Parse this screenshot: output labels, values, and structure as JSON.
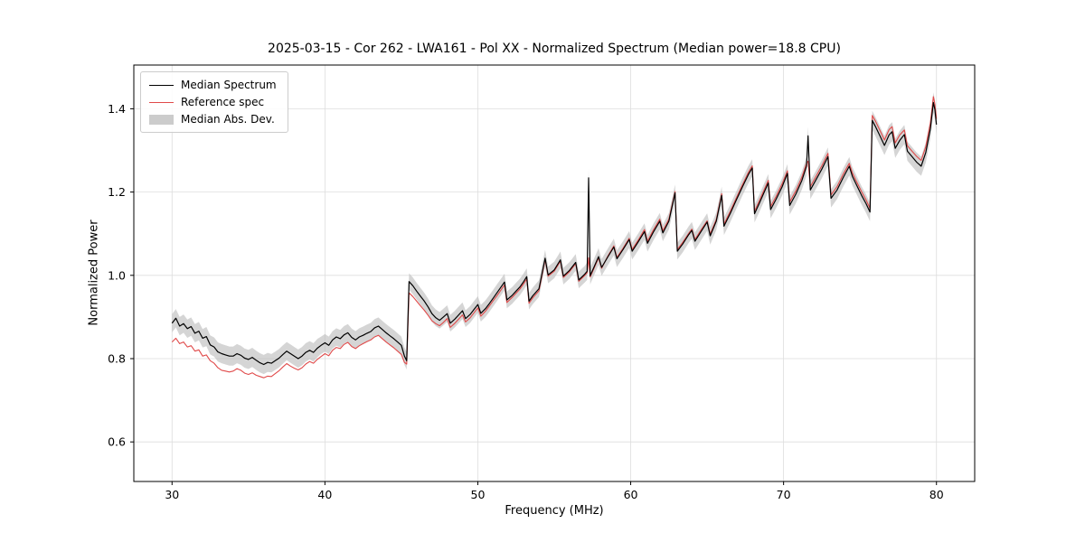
{
  "chart_data": {
    "type": "line",
    "title": "2025-03-15 - Cor 262 - LWA161 - Pol XX - Normalized Spectrum (Median power=18.8 CPU)",
    "xlabel": "Frequency (MHz)",
    "ylabel": "Normalized Power",
    "xlim": [
      27.5,
      82.5
    ],
    "ylim": [
      0.505,
      1.505
    ],
    "xticks": [
      30,
      40,
      50,
      60,
      70,
      80
    ],
    "yticks": [
      0.6,
      0.8,
      1.0,
      1.2,
      1.4
    ],
    "grid": true,
    "legend_position": "upper-left",
    "legend": [
      "Median Spectrum",
      "Reference spec",
      "Median Abs. Dev."
    ],
    "colors": {
      "median": "#000000",
      "reference": "#e04a4a",
      "band": "#bfbfbf",
      "grid": "#dddddd",
      "frame": "#000000"
    },
    "point_format": [
      "frequency_mhz",
      "median",
      "reference",
      "mad_halfwidth"
    ],
    "points": [
      [
        30.0,
        0.885,
        0.84,
        0.022
      ],
      [
        30.25,
        0.897,
        0.849,
        0.022
      ],
      [
        30.5,
        0.878,
        0.836,
        0.022
      ],
      [
        30.75,
        0.884,
        0.84,
        0.022
      ],
      [
        31.0,
        0.872,
        0.828,
        0.022
      ],
      [
        31.25,
        0.877,
        0.831,
        0.022
      ],
      [
        31.5,
        0.861,
        0.818,
        0.022
      ],
      [
        31.75,
        0.866,
        0.821,
        0.022
      ],
      [
        32.0,
        0.849,
        0.806,
        0.022
      ],
      [
        32.25,
        0.853,
        0.809,
        0.023
      ],
      [
        32.5,
        0.833,
        0.795,
        0.023
      ],
      [
        32.75,
        0.828,
        0.789,
        0.023
      ],
      [
        33.0,
        0.816,
        0.778,
        0.023
      ],
      [
        33.25,
        0.812,
        0.772,
        0.023
      ],
      [
        33.5,
        0.809,
        0.77,
        0.023
      ],
      [
        33.75,
        0.806,
        0.768,
        0.023
      ],
      [
        34.0,
        0.806,
        0.77,
        0.023
      ],
      [
        34.25,
        0.812,
        0.776,
        0.023
      ],
      [
        34.5,
        0.808,
        0.772,
        0.023
      ],
      [
        34.75,
        0.801,
        0.765,
        0.023
      ],
      [
        35.0,
        0.798,
        0.762,
        0.023
      ],
      [
        35.25,
        0.803,
        0.766,
        0.023
      ],
      [
        35.5,
        0.796,
        0.76,
        0.023
      ],
      [
        35.75,
        0.79,
        0.757,
        0.023
      ],
      [
        36.0,
        0.786,
        0.754,
        0.023
      ],
      [
        36.25,
        0.791,
        0.758,
        0.023
      ],
      [
        36.5,
        0.789,
        0.757,
        0.022
      ],
      [
        36.75,
        0.795,
        0.764,
        0.022
      ],
      [
        37.0,
        0.801,
        0.771,
        0.022
      ],
      [
        37.25,
        0.81,
        0.78,
        0.022
      ],
      [
        37.5,
        0.818,
        0.788,
        0.022
      ],
      [
        37.75,
        0.812,
        0.782,
        0.022
      ],
      [
        38.0,
        0.806,
        0.777,
        0.022
      ],
      [
        38.25,
        0.8,
        0.773,
        0.022
      ],
      [
        38.5,
        0.806,
        0.778,
        0.022
      ],
      [
        38.75,
        0.815,
        0.787,
        0.022
      ],
      [
        39.0,
        0.82,
        0.793,
        0.022
      ],
      [
        39.25,
        0.815,
        0.789,
        0.022
      ],
      [
        39.5,
        0.825,
        0.798,
        0.022
      ],
      [
        39.75,
        0.832,
        0.805,
        0.021
      ],
      [
        40.0,
        0.838,
        0.812,
        0.021
      ],
      [
        40.25,
        0.832,
        0.807,
        0.021
      ],
      [
        40.5,
        0.845,
        0.82,
        0.021
      ],
      [
        40.75,
        0.852,
        0.827,
        0.021
      ],
      [
        41.0,
        0.848,
        0.824,
        0.021
      ],
      [
        41.25,
        0.857,
        0.834,
        0.021
      ],
      [
        41.5,
        0.862,
        0.839,
        0.021
      ],
      [
        41.75,
        0.851,
        0.829,
        0.021
      ],
      [
        42.0,
        0.845,
        0.824,
        0.021
      ],
      [
        42.25,
        0.852,
        0.831,
        0.021
      ],
      [
        42.5,
        0.856,
        0.836,
        0.021
      ],
      [
        42.75,
        0.861,
        0.841,
        0.021
      ],
      [
        43.0,
        0.865,
        0.845,
        0.021
      ],
      [
        43.25,
        0.874,
        0.852,
        0.021
      ],
      [
        43.5,
        0.878,
        0.856,
        0.021
      ],
      [
        43.75,
        0.87,
        0.848,
        0.021
      ],
      [
        44.0,
        0.862,
        0.84,
        0.021
      ],
      [
        44.25,
        0.855,
        0.833,
        0.021
      ],
      [
        44.5,
        0.848,
        0.826,
        0.021
      ],
      [
        44.75,
        0.84,
        0.818,
        0.021
      ],
      [
        45.0,
        0.832,
        0.81,
        0.021
      ],
      [
        45.2,
        0.806,
        0.791,
        0.021
      ],
      [
        45.35,
        0.795,
        0.787,
        0.021
      ],
      [
        45.5,
        0.985,
        0.958,
        0.02
      ],
      [
        45.75,
        0.975,
        0.949,
        0.02
      ],
      [
        46.0,
        0.962,
        0.938,
        0.02
      ],
      [
        46.25,
        0.95,
        0.927,
        0.02
      ],
      [
        46.5,
        0.938,
        0.916,
        0.02
      ],
      [
        46.75,
        0.924,
        0.904,
        0.02
      ],
      [
        47.0,
        0.908,
        0.891,
        0.02
      ],
      [
        47.25,
        0.898,
        0.884,
        0.02
      ],
      [
        47.5,
        0.892,
        0.879,
        0.02
      ],
      [
        47.75,
        0.9,
        0.887,
        0.02
      ],
      [
        48.0,
        0.908,
        0.896,
        0.02
      ],
      [
        48.2,
        0.885,
        0.875,
        0.02
      ],
      [
        48.5,
        0.895,
        0.885,
        0.02
      ],
      [
        48.75,
        0.905,
        0.895,
        0.02
      ],
      [
        49.0,
        0.915,
        0.905,
        0.02
      ],
      [
        49.2,
        0.896,
        0.888,
        0.02
      ],
      [
        49.5,
        0.906,
        0.898,
        0.02
      ],
      [
        49.75,
        0.918,
        0.91,
        0.02
      ],
      [
        50.0,
        0.93,
        0.922,
        0.02
      ],
      [
        50.2,
        0.909,
        0.902,
        0.02
      ],
      [
        50.5,
        0.92,
        0.914,
        0.02
      ],
      [
        50.75,
        0.932,
        0.926,
        0.02
      ],
      [
        51.0,
        0.945,
        0.939,
        0.02
      ],
      [
        51.25,
        0.958,
        0.951,
        0.02
      ],
      [
        51.5,
        0.971,
        0.964,
        0.02
      ],
      [
        51.75,
        0.984,
        0.977,
        0.02
      ],
      [
        51.9,
        0.941,
        0.935,
        0.02
      ],
      [
        52.25,
        0.952,
        0.947,
        0.02
      ],
      [
        52.5,
        0.962,
        0.957,
        0.02
      ],
      [
        52.75,
        0.972,
        0.967,
        0.02
      ],
      [
        53.0,
        0.985,
        0.98,
        0.02
      ],
      [
        53.2,
        0.997,
        0.991,
        0.02
      ],
      [
        53.35,
        0.938,
        0.933,
        0.02
      ],
      [
        53.6,
        0.951,
        0.946,
        0.02
      ],
      [
        54.0,
        0.968,
        0.963,
        0.02
      ],
      [
        54.4,
        1.041,
        1.038,
        0.02
      ],
      [
        54.6,
        1.001,
        0.998,
        0.02
      ],
      [
        55.0,
        1.013,
        1.01,
        0.02
      ],
      [
        55.4,
        1.037,
        1.034,
        0.02
      ],
      [
        55.6,
        0.998,
        0.995,
        0.02
      ],
      [
        56.0,
        1.012,
        1.009,
        0.02
      ],
      [
        56.4,
        1.031,
        1.028,
        0.02
      ],
      [
        56.6,
        0.989,
        0.986,
        0.02
      ],
      [
        57.0,
        1.003,
        1.0,
        0.02
      ],
      [
        57.15,
        1.01,
        1.006,
        0.021
      ],
      [
        57.25,
        1.234,
        1.042,
        0.022
      ],
      [
        57.35,
        0.999,
        0.996,
        0.021
      ],
      [
        57.6,
        1.02,
        1.017,
        0.02
      ],
      [
        57.9,
        1.045,
        1.042,
        0.02
      ],
      [
        58.1,
        1.019,
        1.017,
        0.02
      ],
      [
        58.5,
        1.044,
        1.046,
        0.02
      ],
      [
        58.9,
        1.068,
        1.071,
        0.02
      ],
      [
        59.1,
        1.04,
        1.043,
        0.02
      ],
      [
        59.5,
        1.062,
        1.065,
        0.02
      ],
      [
        59.9,
        1.086,
        1.089,
        0.02
      ],
      [
        60.1,
        1.058,
        1.062,
        0.02
      ],
      [
        60.5,
        1.081,
        1.085,
        0.02
      ],
      [
        60.9,
        1.105,
        1.11,
        0.02
      ],
      [
        61.1,
        1.077,
        1.082,
        0.02
      ],
      [
        61.5,
        1.105,
        1.11,
        0.02
      ],
      [
        61.9,
        1.13,
        1.135,
        0.02
      ],
      [
        62.1,
        1.102,
        1.107,
        0.02
      ],
      [
        62.5,
        1.13,
        1.135,
        0.02
      ],
      [
        62.9,
        1.198,
        1.201,
        0.02
      ],
      [
        63.05,
        1.058,
        1.062,
        0.02
      ],
      [
        63.4,
        1.075,
        1.079,
        0.02
      ],
      [
        63.8,
        1.098,
        1.101,
        0.02
      ],
      [
        64.0,
        1.108,
        1.111,
        0.02
      ],
      [
        64.2,
        1.082,
        1.086,
        0.021
      ],
      [
        64.6,
        1.105,
        1.109,
        0.021
      ],
      [
        65.0,
        1.128,
        1.131,
        0.021
      ],
      [
        65.2,
        1.095,
        1.099,
        0.021
      ],
      [
        65.6,
        1.13,
        1.134,
        0.021
      ],
      [
        65.95,
        1.192,
        1.196,
        0.021
      ],
      [
        66.1,
        1.118,
        1.123,
        0.021
      ],
      [
        66.5,
        1.148,
        1.153,
        0.021
      ],
      [
        66.9,
        1.18,
        1.185,
        0.021
      ],
      [
        67.3,
        1.212,
        1.217,
        0.021
      ],
      [
        67.7,
        1.242,
        1.247,
        0.021
      ],
      [
        67.95,
        1.258,
        1.263,
        0.021
      ],
      [
        68.1,
        1.148,
        1.154,
        0.021
      ],
      [
        68.4,
        1.172,
        1.178,
        0.021
      ],
      [
        68.8,
        1.205,
        1.211,
        0.021
      ],
      [
        69.0,
        1.222,
        1.228,
        0.021
      ],
      [
        69.15,
        1.158,
        1.165,
        0.021
      ],
      [
        69.5,
        1.182,
        1.189,
        0.021
      ],
      [
        69.9,
        1.212,
        1.219,
        0.021
      ],
      [
        70.25,
        1.245,
        1.251,
        0.022
      ],
      [
        70.4,
        1.168,
        1.176,
        0.022
      ],
      [
        70.8,
        1.195,
        1.203,
        0.022
      ],
      [
        71.2,
        1.228,
        1.236,
        0.022
      ],
      [
        71.5,
        1.262,
        1.269,
        0.022
      ],
      [
        71.6,
        1.335,
        1.274,
        0.022
      ],
      [
        71.75,
        1.205,
        1.213,
        0.022
      ],
      [
        72.1,
        1.228,
        1.236,
        0.022
      ],
      [
        72.5,
        1.255,
        1.263,
        0.022
      ],
      [
        72.9,
        1.285,
        1.293,
        0.022
      ],
      [
        73.1,
        1.185,
        1.193,
        0.022
      ],
      [
        73.5,
        1.205,
        1.213,
        0.022
      ],
      [
        73.9,
        1.235,
        1.243,
        0.022
      ],
      [
        74.3,
        1.262,
        1.269,
        0.022
      ],
      [
        74.5,
        1.238,
        1.246,
        0.022
      ],
      [
        74.8,
        1.215,
        1.223,
        0.022
      ],
      [
        75.1,
        1.192,
        1.201,
        0.022
      ],
      [
        75.4,
        1.172,
        1.181,
        0.022
      ],
      [
        75.65,
        1.152,
        1.161,
        0.022
      ],
      [
        75.8,
        1.372,
        1.384,
        0.023
      ],
      [
        76.0,
        1.358,
        1.371,
        0.023
      ],
      [
        76.3,
        1.335,
        1.348,
        0.023
      ],
      [
        76.6,
        1.312,
        1.325,
        0.023
      ],
      [
        76.9,
        1.337,
        1.35,
        0.023
      ],
      [
        77.1,
        1.345,
        1.357,
        0.023
      ],
      [
        77.3,
        1.305,
        1.318,
        0.023
      ],
      [
        77.6,
        1.324,
        1.337,
        0.023
      ],
      [
        77.9,
        1.338,
        1.349,
        0.023
      ],
      [
        78.1,
        1.298,
        1.311,
        0.023
      ],
      [
        78.4,
        1.285,
        1.298,
        0.023
      ],
      [
        78.7,
        1.272,
        1.286,
        0.023
      ],
      [
        79.0,
        1.262,
        1.276,
        0.023
      ],
      [
        79.3,
        1.295,
        1.309,
        0.024
      ],
      [
        79.6,
        1.352,
        1.366,
        0.024
      ],
      [
        79.8,
        1.415,
        1.429,
        0.024
      ],
      [
        79.9,
        1.398,
        1.411,
        0.024
      ],
      [
        80.0,
        1.362,
        1.376,
        0.024
      ]
    ]
  }
}
